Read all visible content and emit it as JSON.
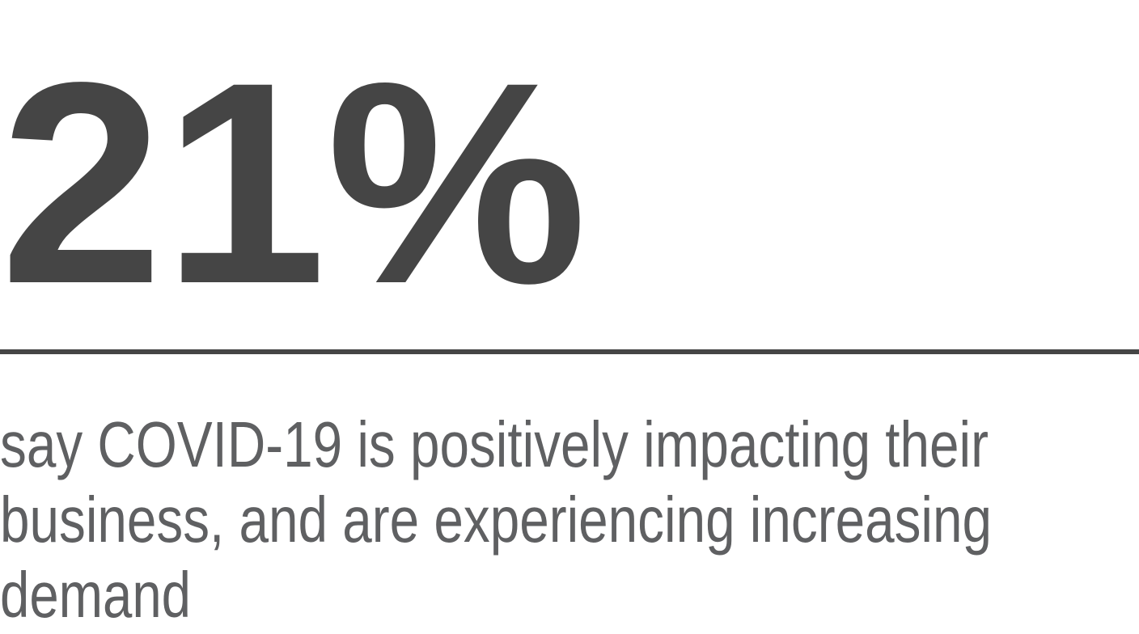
{
  "stat": {
    "value": "21%"
  },
  "description": {
    "lines": [
      "say COVID-19 is positively impacting their",
      "business, and are experiencing increasing",
      "demand"
    ]
  }
}
